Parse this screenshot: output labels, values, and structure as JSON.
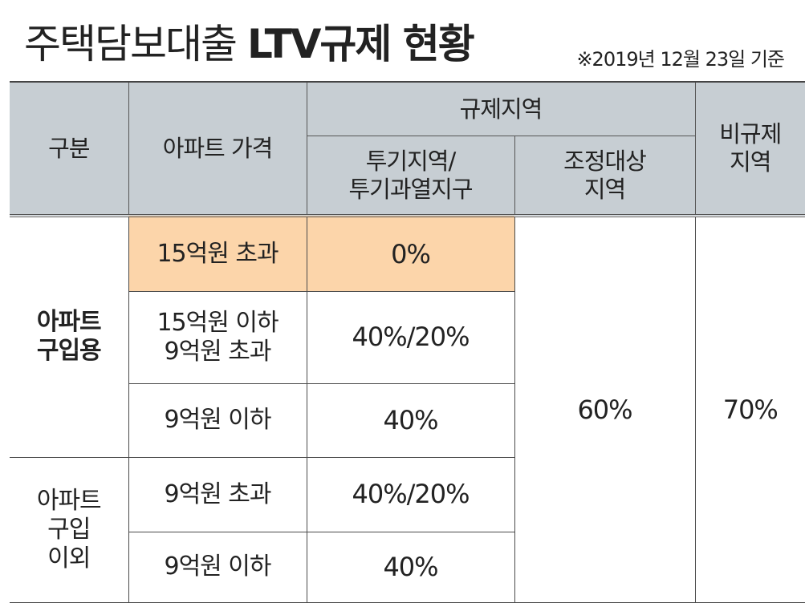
{
  "header": {
    "title_thin": "주택담보대출",
    "title_bold": "LTV규제 현황",
    "as_of": "※2019년 12월 23일 기준"
  },
  "table": {
    "columns": {
      "category": "구분",
      "price": "아파트 가격",
      "regulated": "규제지역",
      "speculative_line1": "투기지역/",
      "speculative_line2": "투기과열지구",
      "adjusted_line1": "조정대상",
      "adjusted_line2": "지역",
      "non_regulated_line1": "비규제",
      "non_regulated_line2": "지역"
    },
    "groups": [
      {
        "label_line1": "아파트",
        "label_line2": "구입용",
        "rows": [
          {
            "price_line1": "15억원 초과",
            "price_line2": "",
            "speculative": "0%"
          },
          {
            "price_line1": "15억원 이하",
            "price_line2": "9억원 초과",
            "speculative": "40%/20%"
          },
          {
            "price_line1": "9억원 이하",
            "price_line2": "",
            "speculative": "40%"
          }
        ]
      },
      {
        "label_line1": "아파트",
        "label_line2": "구입",
        "label_line3": "이외",
        "rows": [
          {
            "price_line1": "9억원 초과",
            "price_line2": "",
            "speculative": "40%/20%"
          },
          {
            "price_line1": "9억원 이하",
            "price_line2": "",
            "speculative": "40%"
          }
        ]
      }
    ],
    "adjusted_value": "60%",
    "non_regulated_value": "70%"
  },
  "colors": {
    "header_bg": "#c7ced3",
    "highlight_bg": "#fcd5aa",
    "text": "#222222"
  }
}
